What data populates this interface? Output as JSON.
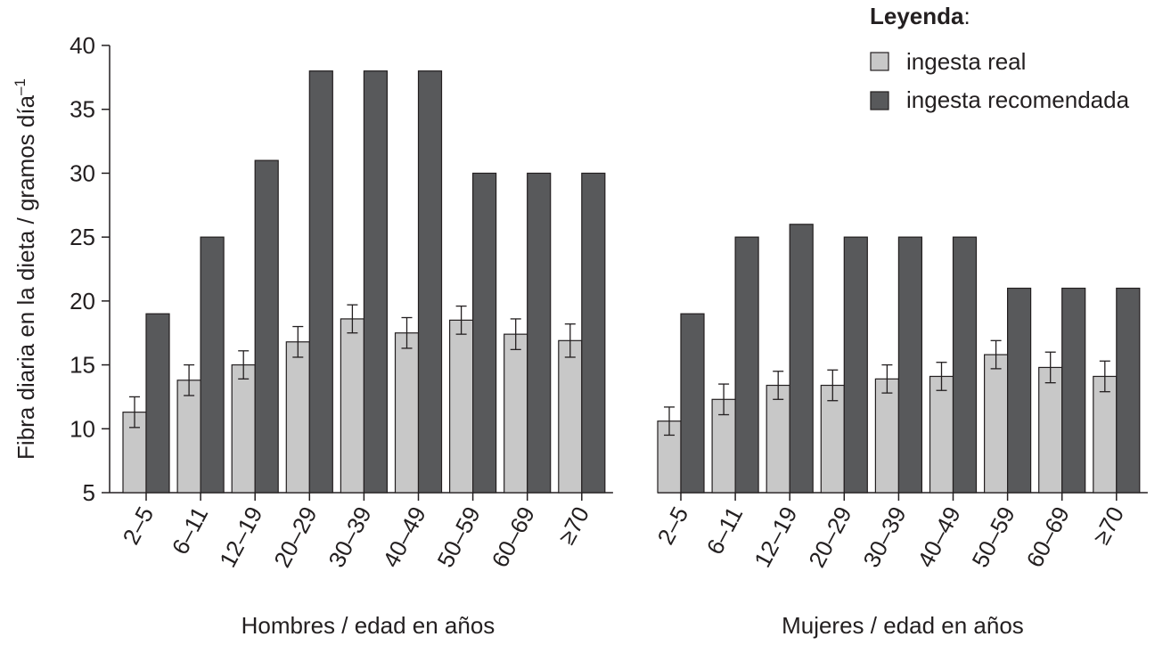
{
  "chart_data": {
    "type": "bar",
    "ylabel": "Fibra diaria en la dieta / gramos día",
    "ylabel_superscript": "–1",
    "ylim": [
      5,
      40
    ],
    "yticks": [
      5,
      10,
      15,
      20,
      25,
      30,
      35,
      40
    ],
    "grid": false,
    "legend": {
      "title": "Leyenda",
      "title_suffix": ":",
      "placement": "top-right",
      "entries": [
        "ingesta real",
        "ingesta recomendada"
      ]
    },
    "series_colors": {
      "ingesta real": "#c8c8c8",
      "ingesta recomendada": "#58595b"
    },
    "groups": [
      {
        "label": "Hombres / edad en años",
        "categories": [
          "2–5",
          "6–11",
          "12–19",
          "20–29",
          "30–39",
          "40–49",
          "50–59",
          "60–69",
          "≥70"
        ],
        "series": [
          {
            "name": "ingesta real",
            "values": [
              11.3,
              13.8,
              15.0,
              16.8,
              18.6,
              17.5,
              18.5,
              17.4,
              16.9
            ],
            "error": [
              1.2,
              1.2,
              1.1,
              1.2,
              1.1,
              1.2,
              1.1,
              1.2,
              1.3
            ]
          },
          {
            "name": "ingesta recomendada",
            "values": [
              19,
              25,
              31,
              38,
              38,
              38,
              30,
              30,
              30
            ]
          }
        ]
      },
      {
        "label": "Mujeres / edad en años",
        "categories": [
          "2–5",
          "6–11",
          "12–19",
          "20–29",
          "30–39",
          "40–49",
          "50–59",
          "60–69",
          "≥70"
        ],
        "series": [
          {
            "name": "ingesta real",
            "values": [
              10.6,
              12.3,
              13.4,
              13.4,
              13.9,
              14.1,
              15.8,
              14.8,
              14.1
            ],
            "error": [
              1.1,
              1.2,
              1.1,
              1.2,
              1.1,
              1.1,
              1.1,
              1.2,
              1.2
            ]
          },
          {
            "name": "ingesta recomendada",
            "values": [
              19,
              25,
              26,
              25,
              25,
              25,
              21,
              21,
              21
            ]
          }
        ]
      }
    ]
  }
}
